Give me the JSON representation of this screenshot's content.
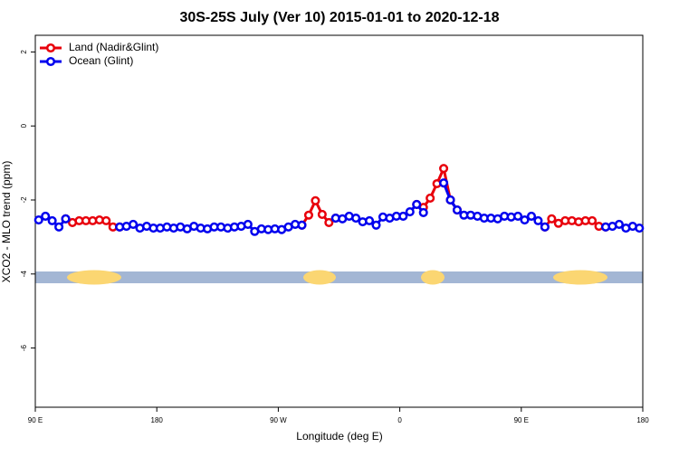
{
  "chart_data": {
    "type": "line",
    "title": "30S-25S July (Ver 10)   2015-01-01 to 2020-12-18",
    "x_label": "Longitude (deg E)",
    "y_label": "XCO2 - MLO trend (ppm)",
    "x": [
      92.5,
      97.5,
      102.5,
      107.5,
      112.5,
      117.5,
      122.5,
      127.5,
      132.5,
      137.5,
      142.5,
      147.5,
      152.5,
      157.5,
      162.5,
      167.5,
      172.5,
      177.5,
      182.5,
      187.5,
      192.5,
      197.5,
      202.5,
      207.5,
      212.5,
      217.5,
      222.5,
      227.5,
      232.5,
      237.5,
      242.5,
      247.5,
      252.5,
      257.5,
      262.5,
      267.5,
      272.5,
      277.5,
      282.5,
      287.5,
      292.5,
      297.5,
      302.5,
      307.5,
      312.5,
      317.5,
      322.5,
      327.5,
      332.5,
      337.5,
      342.5,
      347.5,
      352.5,
      357.5,
      362.5,
      367.5,
      372.5,
      377.5,
      382.5,
      387.5,
      392.5,
      397.5,
      402.5,
      407.5,
      412.5,
      417.5,
      422.5,
      427.5,
      432.5,
      437.5,
      442.5,
      447.5,
      452.5,
      457.5,
      462.5,
      467.5,
      472.5,
      477.5,
      482.5,
      487.5,
      492.5,
      497.5,
      502.5,
      507.5,
      512.5,
      517.5,
      522.5,
      527.5,
      532.5,
      537.5
    ],
    "series": [
      {
        "name": "Land (Nadir&Glint)",
        "color": "#e8000b",
        "values": [
          null,
          null,
          null,
          null,
          -2.51,
          -2.61,
          -2.56,
          -2.56,
          -2.56,
          -2.54,
          -2.56,
          -2.73,
          -2.73,
          null,
          null,
          null,
          null,
          null,
          null,
          null,
          null,
          null,
          null,
          null,
          null,
          null,
          null,
          null,
          null,
          null,
          null,
          null,
          null,
          null,
          null,
          null,
          null,
          null,
          null,
          -2.68,
          -2.41,
          -2.02,
          -2.39,
          -2.61,
          -2.49,
          null,
          null,
          null,
          null,
          null,
          null,
          null,
          null,
          null,
          null,
          null,
          -2.12,
          -2.2,
          -1.95,
          -1.56,
          -1.15,
          -2.0,
          -2.27,
          null,
          null,
          null,
          null,
          null,
          null,
          null,
          null,
          null,
          null,
          null,
          null,
          -2.73,
          -2.51,
          -2.63,
          -2.56,
          -2.56,
          -2.59,
          -2.56,
          -2.56,
          -2.71,
          -2.73,
          null,
          null,
          null,
          null,
          null
        ]
      },
      {
        "name": "Ocean (Glint)",
        "color": "#0000ee",
        "values": [
          -2.54,
          -2.44,
          -2.56,
          -2.73,
          -2.51,
          null,
          null,
          null,
          null,
          null,
          null,
          null,
          -2.73,
          -2.71,
          -2.66,
          -2.76,
          -2.71,
          -2.76,
          -2.76,
          -2.73,
          -2.76,
          -2.73,
          -2.78,
          -2.71,
          -2.76,
          -2.78,
          -2.73,
          -2.73,
          -2.76,
          -2.73,
          -2.71,
          -2.66,
          -2.85,
          -2.78,
          -2.8,
          -2.78,
          -2.8,
          -2.73,
          -2.66,
          -2.68,
          null,
          null,
          null,
          null,
          -2.49,
          -2.51,
          -2.44,
          -2.49,
          -2.59,
          -2.56,
          -2.68,
          -2.46,
          -2.49,
          -2.44,
          -2.44,
          -2.32,
          -2.12,
          -2.34,
          null,
          null,
          -1.54,
          -2.0,
          -2.27,
          -2.41,
          -2.41,
          -2.44,
          -2.49,
          -2.49,
          -2.51,
          -2.44,
          -2.46,
          -2.44,
          -2.54,
          -2.44,
          -2.56,
          -2.73,
          null,
          null,
          null,
          null,
          null,
          null,
          null,
          null,
          -2.73,
          -2.71,
          -2.66,
          -2.76,
          -2.71,
          -2.76
        ]
      }
    ],
    "xlim": [
      90,
      540
    ],
    "ylim": [
      -7.6,
      2.45
    ],
    "xticks": [
      {
        "value": 90,
        "label": "90 E"
      },
      180,
      {
        "value": 270,
        "label": "90 W"
      },
      {
        "value": 360,
        "label": "0"
      },
      {
        "value": 450,
        "label": "90 E"
      },
      {
        "value": 540,
        "label": "180"
      }
    ],
    "yticks": [
      -6,
      -4,
      -2,
      0,
      2
    ],
    "legend": "top-left"
  }
}
